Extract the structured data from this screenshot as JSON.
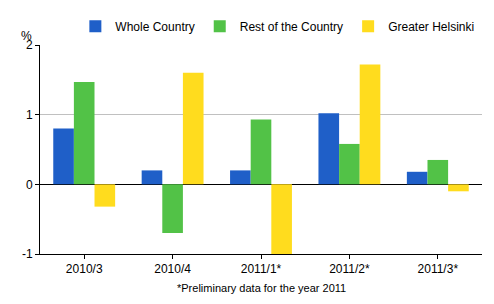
{
  "chart_data": {
    "type": "bar",
    "y_label": "%",
    "footnote": "*Preliminary data for the year 2011",
    "categories": [
      "2010/3",
      "2010/4",
      "2011/1*",
      "2011/2*",
      "2011/3*"
    ],
    "series": [
      {
        "name": "Whole Country",
        "color": "#1f5fc8",
        "values": [
          0.8,
          0.2,
          0.2,
          1.02,
          0.18
        ]
      },
      {
        "name": "Rest of the Country",
        "color": "#52c247",
        "values": [
          1.47,
          -0.7,
          0.93,
          0.58,
          0.35
        ]
      },
      {
        "name": "Greater Helsinki",
        "color": "#ffdc1e",
        "values": [
          -0.32,
          1.6,
          -1.0,
          1.72,
          -0.1
        ]
      }
    ],
    "ylim": [
      -1,
      2
    ],
    "yticks": [
      -1,
      0,
      1,
      2
    ],
    "grid": true,
    "legend": "top"
  }
}
